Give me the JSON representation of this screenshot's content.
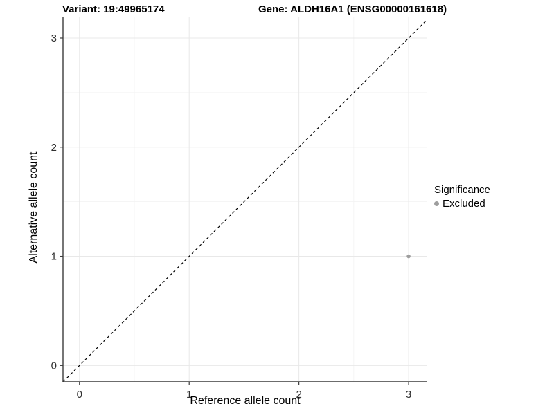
{
  "header": {
    "variant_title": "Variant: 19:49965174",
    "gene_title": "Gene: ALDH16A1 (ENSG00000161618)"
  },
  "chart_data": {
    "type": "scatter",
    "titles": [
      "Variant: 19:49965174",
      "Gene: ALDH16A1 (ENSG00000161618)"
    ],
    "xlabel": "Reference allele count",
    "ylabel": "Alternative allele count",
    "xlim": [
      -0.15,
      3.17
    ],
    "ylim": [
      -0.15,
      3.19
    ],
    "xticks": [
      0,
      1,
      2,
      3
    ],
    "yticks": [
      0,
      1,
      2,
      3
    ],
    "xminor": [
      0.5,
      1.5,
      2.5
    ],
    "yminor": [
      0.5,
      1.5,
      2.5
    ],
    "grid": "on",
    "reference_line": {
      "kind": "identity y=x",
      "style": "dashed",
      "color": "#000000"
    },
    "series": [
      {
        "name": "Excluded",
        "marker": "circle",
        "color": "#9e9e9e",
        "points": [
          [
            3,
            1
          ]
        ]
      }
    ],
    "legend": {
      "title": "Significance",
      "position": "right",
      "entries": [
        {
          "label": "Excluded",
          "color": "#9e9e9e"
        }
      ]
    }
  },
  "colors": {
    "background": "#ffffff",
    "grid_major": "#e8e8e8",
    "grid_minor": "#f2f2f2",
    "axis_line": "#3c3c3c",
    "tick_label": "#303030",
    "dashed_line": "#000000",
    "point": "#9e9e9e"
  }
}
